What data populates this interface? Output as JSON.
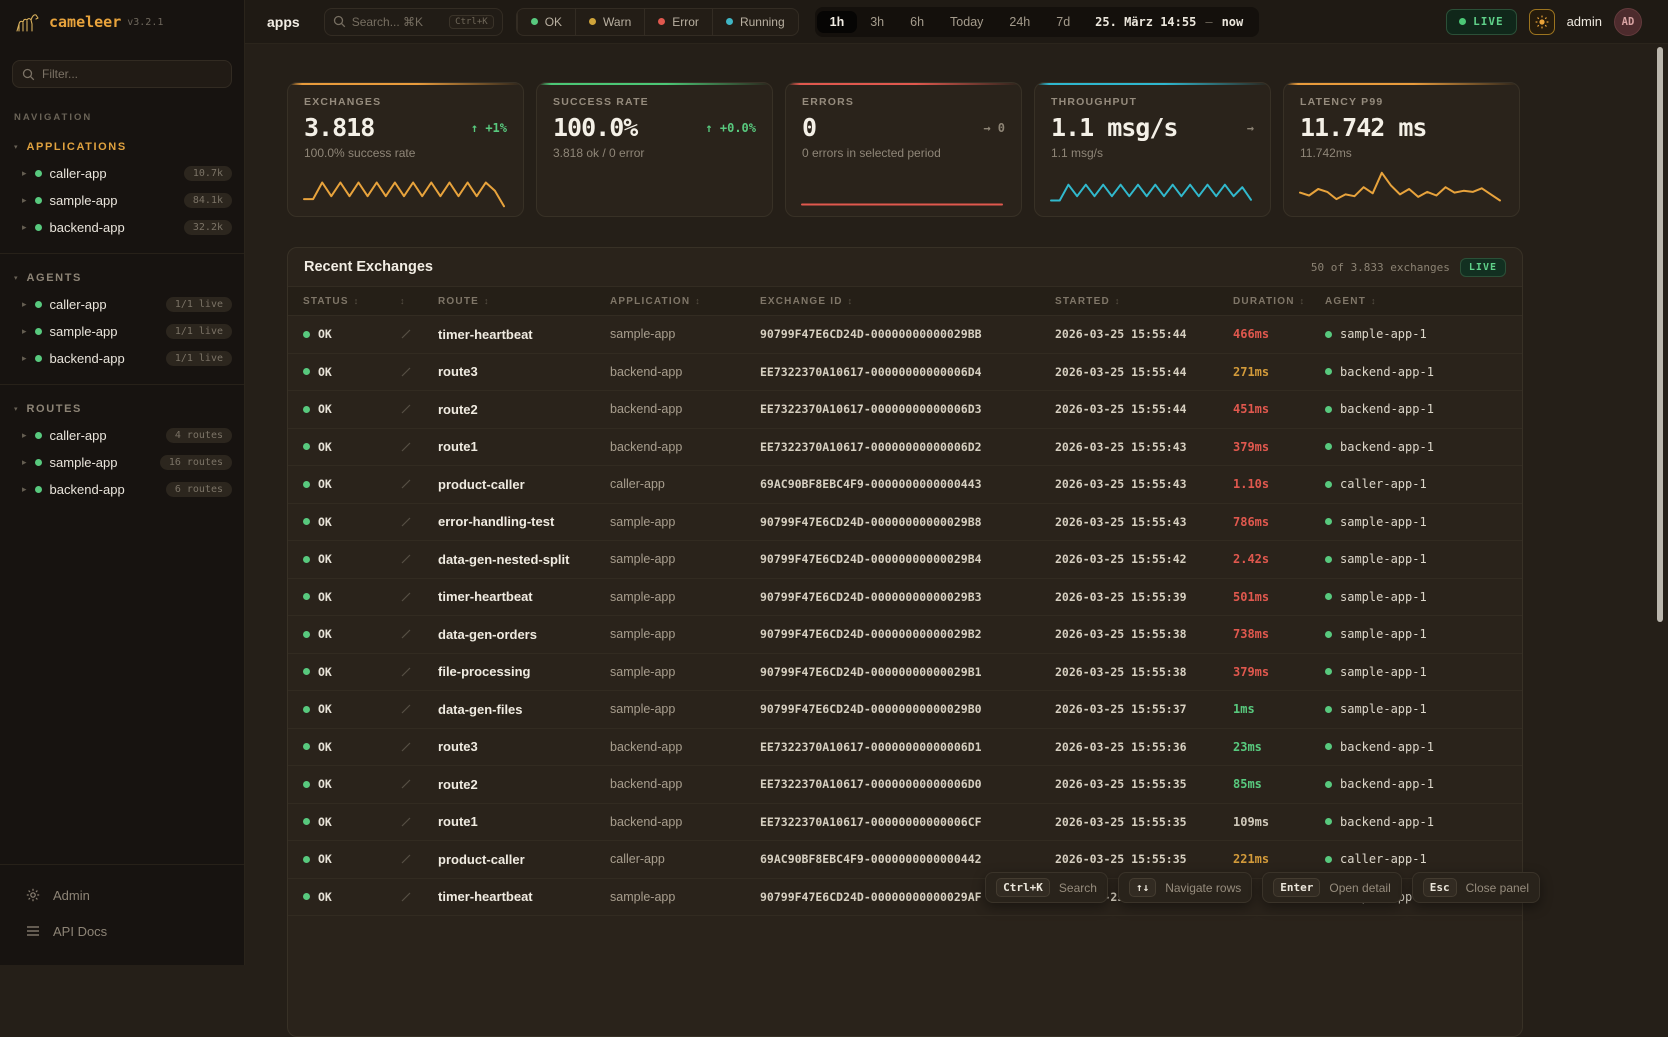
{
  "brand": {
    "name": "cameleer",
    "version": "v3.2.1"
  },
  "sidebar": {
    "filter_placeholder": "Filter...",
    "nav_label": "NAVIGATION",
    "sections": [
      {
        "title": "APPLICATIONS",
        "title_color": "#e0a23f",
        "items": [
          {
            "name": "caller-app",
            "badge": "10.7k",
            "dot_color": "#58c97e"
          },
          {
            "name": "sample-app",
            "badge": "84.1k",
            "dot_color": "#58c97e"
          },
          {
            "name": "backend-app",
            "badge": "32.2k",
            "dot_color": "#58c97e"
          }
        ]
      },
      {
        "title": "AGENTS",
        "title_color": "#8d8476",
        "items": [
          {
            "name": "caller-app",
            "badge": "1/1 live",
            "dot_color": "#58c97e"
          },
          {
            "name": "sample-app",
            "badge": "1/1 live",
            "dot_color": "#58c97e"
          },
          {
            "name": "backend-app",
            "badge": "1/1 live",
            "dot_color": "#58c97e"
          }
        ]
      },
      {
        "title": "ROUTES",
        "title_color": "#8d8476",
        "items": [
          {
            "name": "caller-app",
            "badge": "4 routes",
            "dot_color": "#58c97e"
          },
          {
            "name": "sample-app",
            "badge": "16 routes",
            "dot_color": "#58c97e"
          },
          {
            "name": "backend-app",
            "badge": "6 routes",
            "dot_color": "#58c97e"
          }
        ]
      }
    ],
    "footer": [
      {
        "label": "Admin"
      },
      {
        "label": "API Docs"
      }
    ]
  },
  "topbar": {
    "context_label": "apps",
    "search_placeholder": "Search... ⌘K",
    "search_shortcut": "Ctrl+K",
    "status_filters": [
      {
        "label": "OK",
        "color": "#58c97e"
      },
      {
        "label": "Warn",
        "color": "#cfa43a"
      },
      {
        "label": "Error",
        "color": "#e0584e"
      },
      {
        "label": "Running",
        "color": "#3fb5c4"
      }
    ],
    "time_ranges": [
      {
        "label": "1h",
        "state": "active"
      },
      {
        "label": "3h"
      },
      {
        "label": "6h"
      },
      {
        "label": "Today"
      },
      {
        "label": "24h"
      },
      {
        "label": "7d"
      }
    ],
    "date_from": "25. März 14:55",
    "date_sep": "—",
    "date_to": "now",
    "live_label": "LIVE",
    "user": "admin",
    "avatar": "AD"
  },
  "kpis": [
    {
      "label": "EXCHANGES",
      "value": "3.818",
      "delta": "↑ +1%",
      "delta_color": "#58c97e",
      "sub": "100.0% success rate",
      "accent": "#e89b3c",
      "spark_color": "#e8a33c",
      "spark": [
        0.22,
        0.22,
        0.68,
        0.3,
        0.68,
        0.3,
        0.68,
        0.3,
        0.68,
        0.3,
        0.68,
        0.3,
        0.68,
        0.3,
        0.68,
        0.3,
        0.68,
        0.3,
        0.68,
        0.3,
        0.68,
        0.45,
        0.02
      ]
    },
    {
      "label": "SUCCESS RATE",
      "value": "100.0%",
      "delta": "↑ +0.0%",
      "delta_color": "#58c97e",
      "sub": "3.818 ok / 0 error",
      "accent": "#4cc776",
      "spark_color": "#4cc776",
      "spark": []
    },
    {
      "label": "ERRORS",
      "value": "0",
      "delta": "→ 0",
      "delta_color": "#8d8475",
      "sub": "0 errors in selected period",
      "accent": "#e0584e",
      "spark_color": "#e0584e",
      "spark": [
        0.07,
        0.07
      ]
    },
    {
      "label": "THROUGHPUT",
      "value": "1.1 msg/s",
      "delta": "→",
      "delta_color": "#8d8475",
      "sub": "1.1 msg/s",
      "accent": "#2fb7cf",
      "spark_color": "#31b9cd",
      "spark": [
        0.18,
        0.18,
        0.62,
        0.3,
        0.62,
        0.3,
        0.62,
        0.3,
        0.62,
        0.3,
        0.62,
        0.3,
        0.62,
        0.3,
        0.62,
        0.3,
        0.62,
        0.3,
        0.62,
        0.3,
        0.62,
        0.3,
        0.55,
        0.2
      ]
    },
    {
      "label": "LATENCY P99",
      "value": "11.742 ms",
      "delta": "",
      "delta_color": "#8d8475",
      "sub": "11.742ms",
      "accent": "#e89b3c",
      "spark_color": "#e8a33c",
      "spark": [
        0.4,
        0.32,
        0.5,
        0.42,
        0.22,
        0.35,
        0.3,
        0.55,
        0.38,
        0.95,
        0.6,
        0.35,
        0.5,
        0.28,
        0.42,
        0.32,
        0.55,
        0.4,
        0.45,
        0.42,
        0.52,
        0.35,
        0.18
      ]
    }
  ],
  "table": {
    "title": "Recent Exchanges",
    "summary": "50 of 3.833 exchanges",
    "live_label": "LIVE",
    "columns": {
      "status": "STATUS",
      "route": "ROUTE",
      "application": "APPLICATION",
      "exchange_id": "EXCHANGE ID",
      "started": "STARTED",
      "duration": "DURATION",
      "agent": "AGENT"
    },
    "rows": [
      {
        "status": "OK",
        "status_color": "#58c97e",
        "route": "timer-heartbeat",
        "application": "sample-app",
        "exchange_id": "90799F47E6CD24D-00000000000029BB",
        "started": "2026-03-25 15:55:44",
        "duration": "466ms",
        "duration_color": "#e0584e",
        "agent": "sample-app-1",
        "agent_color": "#58c97e"
      },
      {
        "status": "OK",
        "status_color": "#58c97e",
        "route": "route3",
        "application": "backend-app",
        "exchange_id": "EE7322370A10617-00000000000006D4",
        "started": "2026-03-25 15:55:44",
        "duration": "271ms",
        "duration_color": "#d29a3a",
        "agent": "backend-app-1",
        "agent_color": "#58c97e"
      },
      {
        "status": "OK",
        "status_color": "#58c97e",
        "route": "route2",
        "application": "backend-app",
        "exchange_id": "EE7322370A10617-00000000000006D3",
        "started": "2026-03-25 15:55:44",
        "duration": "451ms",
        "duration_color": "#e0584e",
        "agent": "backend-app-1",
        "agent_color": "#58c97e"
      },
      {
        "status": "OK",
        "status_color": "#58c97e",
        "route": "route1",
        "application": "backend-app",
        "exchange_id": "EE7322370A10617-00000000000006D2",
        "started": "2026-03-25 15:55:43",
        "duration": "379ms",
        "duration_color": "#e0584e",
        "agent": "backend-app-1",
        "agent_color": "#58c97e"
      },
      {
        "status": "OK",
        "status_color": "#58c97e",
        "route": "product-caller",
        "application": "caller-app",
        "exchange_id": "69AC90BF8EBC4F9-0000000000000443",
        "started": "2026-03-25 15:55:43",
        "duration": "1.10s",
        "duration_color": "#e0584e",
        "agent": "caller-app-1",
        "agent_color": "#58c97e"
      },
      {
        "status": "OK",
        "status_color": "#58c97e",
        "route": "error-handling-test",
        "application": "sample-app",
        "exchange_id": "90799F47E6CD24D-00000000000029B8",
        "started": "2026-03-25 15:55:43",
        "duration": "786ms",
        "duration_color": "#e0584e",
        "agent": "sample-app-1",
        "agent_color": "#58c97e"
      },
      {
        "status": "OK",
        "status_color": "#58c97e",
        "route": "data-gen-nested-split",
        "application": "sample-app",
        "exchange_id": "90799F47E6CD24D-00000000000029B4",
        "started": "2026-03-25 15:55:42",
        "duration": "2.42s",
        "duration_color": "#e0584e",
        "agent": "sample-app-1",
        "agent_color": "#58c97e"
      },
      {
        "status": "OK",
        "status_color": "#58c97e",
        "route": "timer-heartbeat",
        "application": "sample-app",
        "exchange_id": "90799F47E6CD24D-00000000000029B3",
        "started": "2026-03-25 15:55:39",
        "duration": "501ms",
        "duration_color": "#e0584e",
        "agent": "sample-app-1",
        "agent_color": "#58c97e"
      },
      {
        "status": "OK",
        "status_color": "#58c97e",
        "route": "data-gen-orders",
        "application": "sample-app",
        "exchange_id": "90799F47E6CD24D-00000000000029B2",
        "started": "2026-03-25 15:55:38",
        "duration": "738ms",
        "duration_color": "#e0584e",
        "agent": "sample-app-1",
        "agent_color": "#58c97e"
      },
      {
        "status": "OK",
        "status_color": "#58c97e",
        "route": "file-processing",
        "application": "sample-app",
        "exchange_id": "90799F47E6CD24D-00000000000029B1",
        "started": "2026-03-25 15:55:38",
        "duration": "379ms",
        "duration_color": "#e0584e",
        "agent": "sample-app-1",
        "agent_color": "#58c97e"
      },
      {
        "status": "OK",
        "status_color": "#58c97e",
        "route": "data-gen-files",
        "application": "sample-app",
        "exchange_id": "90799F47E6CD24D-00000000000029B0",
        "started": "2026-03-25 15:55:37",
        "duration": "1ms",
        "duration_color": "#58c97e",
        "agent": "sample-app-1",
        "agent_color": "#58c97e"
      },
      {
        "status": "OK",
        "status_color": "#58c97e",
        "route": "route3",
        "application": "backend-app",
        "exchange_id": "EE7322370A10617-00000000000006D1",
        "started": "2026-03-25 15:55:36",
        "duration": "23ms",
        "duration_color": "#58c97e",
        "agent": "backend-app-1",
        "agent_color": "#58c97e"
      },
      {
        "status": "OK",
        "status_color": "#58c97e",
        "route": "route2",
        "application": "backend-app",
        "exchange_id": "EE7322370A10617-00000000000006D0",
        "started": "2026-03-25 15:55:35",
        "duration": "85ms",
        "duration_color": "#58c97e",
        "agent": "backend-app-1",
        "agent_color": "#58c97e"
      },
      {
        "status": "OK",
        "status_color": "#58c97e",
        "route": "route1",
        "application": "backend-app",
        "exchange_id": "EE7322370A10617-00000000000006CF",
        "started": "2026-03-25 15:55:35",
        "duration": "109ms",
        "duration_color": "#cfc8ba",
        "agent": "backend-app-1",
        "agent_color": "#58c97e"
      },
      {
        "status": "OK",
        "status_color": "#58c97e",
        "route": "product-caller",
        "application": "caller-app",
        "exchange_id": "69AC90BF8EBC4F9-0000000000000442",
        "started": "2026-03-25 15:55:35",
        "duration": "221ms",
        "duration_color": "#d29a3a",
        "agent": "caller-app-1",
        "agent_color": "#58c97e"
      },
      {
        "status": "OK",
        "status_color": "#58c97e",
        "route": "timer-heartbeat",
        "application": "sample-app",
        "exchange_id": "90799F47E6CD24D-00000000000029AF",
        "started": "2026-03-25 1",
        "duration": "",
        "duration_color": "#cfc8ba",
        "agent": "sample-app-1",
        "agent_color": "#58c97e"
      }
    ]
  },
  "footer": {
    "hints": [
      {
        "key": "Ctrl+K",
        "label": "Search"
      },
      {
        "key": "↑↓",
        "label": "Navigate rows"
      },
      {
        "key": "Enter",
        "label": "Open detail"
      },
      {
        "key": "Esc",
        "label": "Close panel"
      }
    ]
  }
}
